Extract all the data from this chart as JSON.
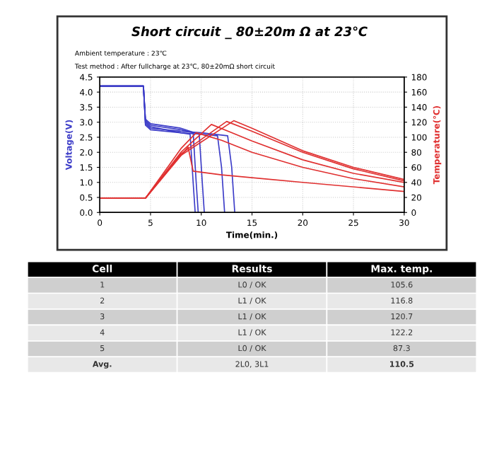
{
  "chart_data": {
    "type": "line",
    "title": "Short circuit _ 80±20m Ω at 23℃",
    "xlabel": "Time(min.)",
    "ylabel": "Voltage(V)",
    "y2label": "Temperature(℃)",
    "annotations": [
      "Ambient temperature : 23℃",
      "Test method : After fullcharge at 23℃, 80±20mΩ short circuit",
      "Cell",
      "Results",
      "Max. temp.",
      "1",
      "L0 / OK",
      "105.6",
      "2",
      "L1 / OK",
      "116.8",
      "3",
      "L1 / OK",
      "120.7",
      "4",
      "L1 / OK",
      "122.2",
      "5",
      "L0 / OK",
      "87.3",
      "Avg.",
      "2L0, 3L1",
      "110.5"
    ],
    "xlim": [
      0,
      30
    ],
    "xticks": [
      0,
      5,
      10,
      15,
      20,
      25,
      30
    ],
    "ylim": [
      0,
      4.5
    ],
    "yticks": [
      {
        "value": 0,
        "label": "0.0"
      },
      0.5,
      {
        "value": 1,
        "label": "1.0"
      },
      1.5,
      {
        "value": 2,
        "label": "2.0"
      },
      2.5,
      {
        "value": 3,
        "label": "3.0"
      },
      3.5,
      {
        "value": 4,
        "label": "4.0"
      },
      4.5
    ],
    "y2lim": [
      0,
      180
    ],
    "y2ticks": [
      0,
      20,
      40,
      60,
      80,
      100,
      120,
      140,
      160,
      180
    ],
    "grid": true,
    "legend": false,
    "series": [
      {
        "color": "#3c3cc8",
        "x": [
          0,
          4.3,
          4.5,
          5,
          8,
          8.9,
          9.2,
          9.4
        ],
        "values": [
          4.2,
          4.2,
          3.0,
          2.85,
          2.65,
          2.6,
          1.0,
          0
        ]
      },
      {
        "color": "#3c3cc8",
        "x": [
          0,
          4.3,
          4.5,
          5,
          8,
          9.2,
          9.5,
          9.7
        ],
        "values": [
          4.2,
          4.2,
          3.05,
          2.9,
          2.75,
          2.65,
          1.0,
          0
        ]
      },
      {
        "color": "#3c3cc8",
        "x": [
          0,
          4.3,
          4.5,
          5,
          8,
          9.8,
          10.1,
          10.3
        ],
        "values": [
          4.2,
          4.2,
          3.1,
          2.95,
          2.8,
          2.6,
          1.0,
          0
        ]
      },
      {
        "color": "#3c3cc8",
        "x": [
          0,
          4.3,
          4.5,
          5,
          8,
          10,
          11.6,
          12.0,
          12.3
        ],
        "values": [
          4.2,
          4.2,
          2.9,
          2.75,
          2.65,
          2.6,
          2.55,
          1.5,
          0
        ]
      },
      {
        "color": "#3c3cc8",
        "x": [
          0,
          4.3,
          4.5,
          5,
          8,
          10,
          12.6,
          13.0,
          13.3
        ],
        "values": [
          4.2,
          4.2,
          2.95,
          2.8,
          2.7,
          2.65,
          2.55,
          1.5,
          0
        ]
      },
      {
        "color": "#e03030",
        "axis": "y2",
        "x": [
          0,
          4.5,
          8,
          9.5,
          12,
          15,
          20,
          25,
          30
        ],
        "values": [
          19,
          19,
          85,
          106,
          96,
          80,
          60,
          45,
          34
        ]
      },
      {
        "color": "#e03030",
        "axis": "y2",
        "x": [
          0,
          4.5,
          8,
          11,
          13,
          15,
          20,
          25,
          30
        ],
        "values": [
          19,
          19,
          80,
          117,
          106,
          95,
          70,
          52,
          40
        ]
      },
      {
        "color": "#e03030",
        "axis": "y2",
        "x": [
          0,
          4.5,
          8,
          12.5,
          15,
          20,
          25,
          30
        ],
        "values": [
          19,
          19,
          78,
          121,
          108,
          80,
          58,
          42
        ]
      },
      {
        "color": "#e03030",
        "axis": "y2",
        "x": [
          0,
          4.5,
          8,
          13.2,
          15,
          20,
          25,
          30
        ],
        "values": [
          19,
          19,
          76,
          122,
          112,
          82,
          60,
          44
        ]
      },
      {
        "color": "#e03030",
        "axis": "y2",
        "x": [
          0,
          4.5,
          8.7,
          9.2,
          12,
          20,
          30
        ],
        "values": [
          19,
          19,
          87,
          55,
          50,
          40,
          28
        ]
      }
    ]
  }
}
